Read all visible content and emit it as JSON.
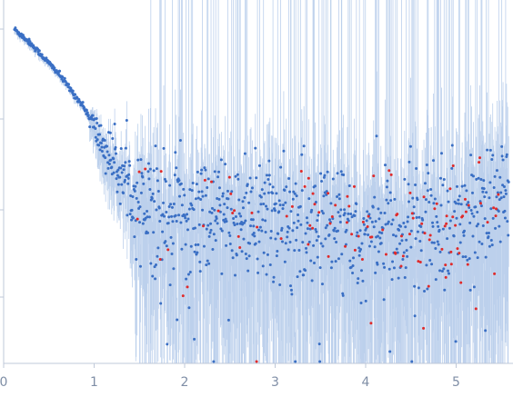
{
  "chart_data": {
    "type": "scatter",
    "title": "",
    "xlabel": "",
    "ylabel": "",
    "xlim": [
      0,
      5.6
    ],
    "x_ticks": [
      "0",
      "1",
      "2",
      "3",
      "4",
      "5"
    ],
    "y_ticks_labeled": false,
    "grid": false,
    "legend": "none",
    "y_scale": "log (unlabeled)",
    "y_decades": 4,
    "y_decade_tick_fractions": [
      0.0,
      0.2475,
      0.4975,
      0.7375
    ],
    "series": [
      {
        "color": "#3a6fc4",
        "error_bar_color": "#bcd0ec",
        "x_start": 0.12,
        "x_end": 5.58,
        "curve_x": [
          0.12,
          0.3,
          0.6,
          0.9,
          1.1,
          1.3,
          1.5,
          1.8,
          2.5,
          3.5,
          4.5,
          5.2,
          5.58
        ],
        "curve_yfrac": [
          0.92,
          0.88,
          0.8,
          0.7,
          0.6,
          0.52,
          0.45,
          0.42,
          0.41,
          0.39,
          0.36,
          0.4,
          0.48
        ]
      },
      {
        "color": "#e02a2a",
        "x_start": 1.45,
        "x_end": 5.58,
        "role": "rejected points"
      }
    ],
    "colors": {
      "axis": "#bfc8d8",
      "tick_text": "#7f8ea6",
      "points_ok": "#3a6fc4",
      "points_rejected": "#e02a2a",
      "error_bars": "#bcd0ec"
    }
  }
}
